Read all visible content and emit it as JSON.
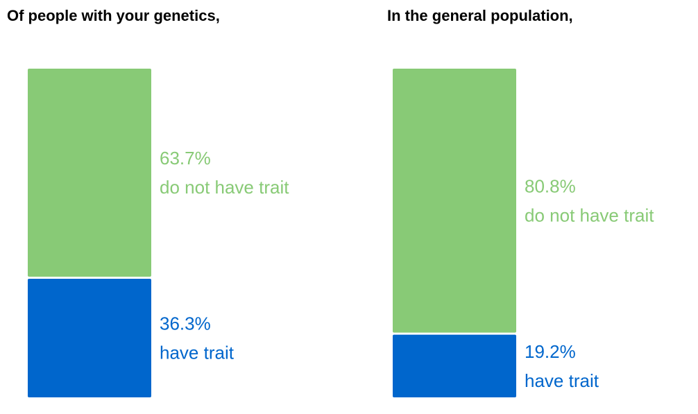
{
  "colors": {
    "no_trait": "#88CA76",
    "has_trait": "#0066CC"
  },
  "chart_data": [
    {
      "type": "bar",
      "stacked": true,
      "title": "Of people with your genetics,",
      "categories": [
        "do not have trait",
        "have trait"
      ],
      "values": [
        63.7,
        36.3
      ],
      "value_labels": [
        "63.7%",
        "36.3%"
      ],
      "ylim": [
        0,
        100
      ]
    },
    {
      "type": "bar",
      "stacked": true,
      "title": "In the general population,",
      "categories": [
        "do not have trait",
        "have trait"
      ],
      "values": [
        80.8,
        19.2
      ],
      "value_labels": [
        "80.8%",
        "19.2%"
      ],
      "ylim": [
        0,
        100
      ]
    }
  ]
}
